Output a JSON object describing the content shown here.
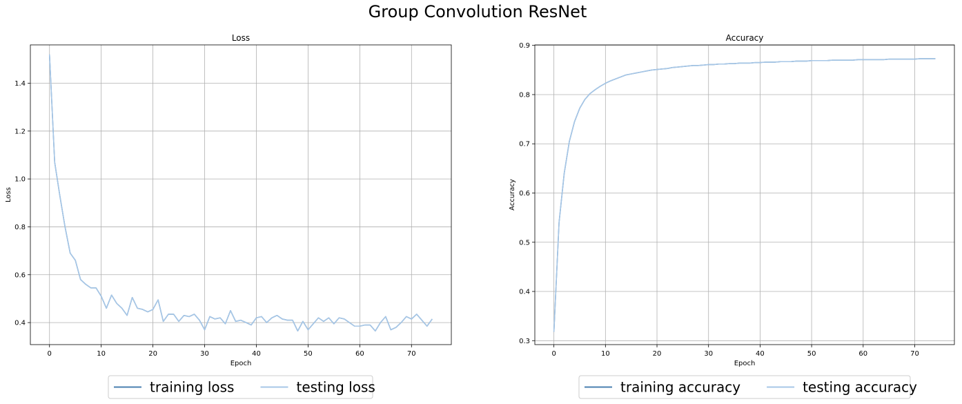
{
  "suptitle": "Group Convolution ResNet",
  "colors": {
    "training": "#4a7fb0",
    "testing": "#a7c7e7",
    "grid": "#b0b0b0"
  },
  "chart_data": [
    {
      "type": "line",
      "title": "Loss",
      "xlabel": "Epoch",
      "ylabel": "Loss",
      "xlim": [
        -3.7,
        77.7
      ],
      "ylim": [
        0.308,
        1.56
      ],
      "xticks": [
        0,
        10,
        20,
        30,
        40,
        50,
        60,
        70
      ],
      "yticks": [
        0.4,
        0.6,
        0.8,
        1.0,
        1.2,
        1.4
      ],
      "grid": true,
      "legend_position": "below plot",
      "series": [
        {
          "name": "training loss",
          "role": "training",
          "x": [
            0,
            1,
            2,
            3,
            4,
            5,
            6,
            7,
            8,
            9,
            10,
            11,
            12,
            13,
            14,
            15,
            16,
            17,
            18,
            19,
            20,
            21,
            22,
            23,
            24,
            25,
            26,
            27,
            28,
            29,
            30,
            31,
            32,
            33,
            34,
            35,
            36,
            37,
            38,
            39,
            40,
            41,
            42,
            43,
            44,
            45,
            46,
            47,
            48,
            49,
            50,
            51,
            52,
            53,
            54,
            55,
            56,
            57,
            58,
            59,
            60,
            61,
            62,
            63,
            64,
            65,
            66,
            67,
            68,
            69,
            70,
            71,
            72,
            73,
            74
          ],
          "y": [
            1.52,
            1.07,
            0.93,
            0.8,
            0.69,
            0.66,
            0.58,
            0.56,
            0.545,
            0.545,
            0.51,
            0.46,
            0.515,
            0.48,
            0.46,
            0.43,
            0.505,
            0.46,
            0.455,
            0.445,
            0.455,
            0.495,
            0.405,
            0.435,
            0.435,
            0.405,
            0.43,
            0.425,
            0.435,
            0.41,
            0.37,
            0.425,
            0.415,
            0.42,
            0.395,
            0.45,
            0.405,
            0.41,
            0.4,
            0.39,
            0.42,
            0.425,
            0.4,
            0.42,
            0.43,
            0.415,
            0.41,
            0.41,
            0.365,
            0.405,
            0.37,
            0.395,
            0.42,
            0.405,
            0.42,
            0.395,
            0.42,
            0.415,
            0.4,
            0.385,
            0.385,
            0.39,
            0.39,
            0.365,
            0.4,
            0.425,
            0.37,
            0.38,
            0.4,
            0.425,
            0.415,
            0.435,
            0.41,
            0.385,
            0.415
          ]
        },
        {
          "name": "testing loss",
          "role": "testing",
          "x": [
            0,
            1,
            2,
            3,
            4,
            5,
            6,
            7,
            8,
            9,
            10,
            11,
            12,
            13,
            14,
            15,
            16,
            17,
            18,
            19,
            20,
            21,
            22,
            23,
            24,
            25,
            26,
            27,
            28,
            29,
            30,
            31,
            32,
            33,
            34,
            35,
            36,
            37,
            38,
            39,
            40,
            41,
            42,
            43,
            44,
            45,
            46,
            47,
            48,
            49,
            50,
            51,
            52,
            53,
            54,
            55,
            56,
            57,
            58,
            59,
            60,
            61,
            62,
            63,
            64,
            65,
            66,
            67,
            68,
            69,
            70,
            71,
            72,
            73,
            74
          ],
          "y": [
            1.52,
            1.07,
            0.93,
            0.8,
            0.69,
            0.66,
            0.58,
            0.56,
            0.545,
            0.545,
            0.51,
            0.46,
            0.515,
            0.48,
            0.46,
            0.43,
            0.505,
            0.46,
            0.455,
            0.445,
            0.455,
            0.495,
            0.405,
            0.435,
            0.435,
            0.405,
            0.43,
            0.425,
            0.435,
            0.41,
            0.37,
            0.425,
            0.415,
            0.42,
            0.395,
            0.45,
            0.405,
            0.41,
            0.4,
            0.39,
            0.42,
            0.425,
            0.4,
            0.42,
            0.43,
            0.415,
            0.41,
            0.41,
            0.365,
            0.405,
            0.37,
            0.395,
            0.42,
            0.405,
            0.42,
            0.395,
            0.42,
            0.415,
            0.4,
            0.385,
            0.385,
            0.39,
            0.39,
            0.365,
            0.4,
            0.425,
            0.37,
            0.38,
            0.4,
            0.425,
            0.415,
            0.435,
            0.41,
            0.385,
            0.415
          ]
        }
      ]
    },
    {
      "type": "line",
      "title": "Accuracy",
      "xlabel": "Epoch",
      "ylabel": "Accuracy",
      "xlim": [
        -3.7,
        77.7
      ],
      "ylim": [
        0.292,
        0.901
      ],
      "xticks": [
        0,
        10,
        20,
        30,
        40,
        50,
        60,
        70
      ],
      "yticks": [
        0.3,
        0.4,
        0.5,
        0.6,
        0.7,
        0.8,
        0.9
      ],
      "grid": true,
      "legend_position": "below plot",
      "series": [
        {
          "name": "training accuracy",
          "role": "training",
          "x": [
            0,
            1,
            2,
            3,
            4,
            5,
            6,
            7,
            8,
            9,
            10,
            11,
            12,
            13,
            14,
            15,
            16,
            17,
            18,
            19,
            20,
            21,
            22,
            23,
            24,
            25,
            26,
            27,
            28,
            29,
            30,
            31,
            32,
            33,
            34,
            35,
            36,
            37,
            38,
            39,
            40,
            41,
            42,
            43,
            44,
            45,
            46,
            47,
            48,
            49,
            50,
            51,
            52,
            53,
            54,
            55,
            56,
            57,
            58,
            59,
            60,
            61,
            62,
            63,
            64,
            65,
            66,
            67,
            68,
            69,
            70,
            71,
            72,
            73,
            74
          ],
          "y": [
            0.318,
            0.54,
            0.64,
            0.705,
            0.745,
            0.772,
            0.79,
            0.802,
            0.81,
            0.817,
            0.823,
            0.828,
            0.832,
            0.836,
            0.84,
            0.842,
            0.844,
            0.846,
            0.848,
            0.85,
            0.851,
            0.852,
            0.853,
            0.855,
            0.856,
            0.857,
            0.858,
            0.859,
            0.859,
            0.86,
            0.861,
            0.861,
            0.862,
            0.862,
            0.863,
            0.863,
            0.864,
            0.864,
            0.864,
            0.865,
            0.865,
            0.866,
            0.866,
            0.866,
            0.867,
            0.867,
            0.867,
            0.868,
            0.868,
            0.868,
            0.869,
            0.869,
            0.869,
            0.869,
            0.87,
            0.87,
            0.87,
            0.87,
            0.87,
            0.871,
            0.871,
            0.871,
            0.871,
            0.871,
            0.871,
            0.872,
            0.872,
            0.872,
            0.872,
            0.872,
            0.872,
            0.873,
            0.873,
            0.873,
            0.873
          ]
        },
        {
          "name": "testing accuracy",
          "role": "testing",
          "x": [
            0,
            1,
            2,
            3,
            4,
            5,
            6,
            7,
            8,
            9,
            10,
            11,
            12,
            13,
            14,
            15,
            16,
            17,
            18,
            19,
            20,
            21,
            22,
            23,
            24,
            25,
            26,
            27,
            28,
            29,
            30,
            31,
            32,
            33,
            34,
            35,
            36,
            37,
            38,
            39,
            40,
            41,
            42,
            43,
            44,
            45,
            46,
            47,
            48,
            49,
            50,
            51,
            52,
            53,
            54,
            55,
            56,
            57,
            58,
            59,
            60,
            61,
            62,
            63,
            64,
            65,
            66,
            67,
            68,
            69,
            70,
            71,
            72,
            73,
            74
          ],
          "y": [
            0.318,
            0.54,
            0.64,
            0.705,
            0.745,
            0.772,
            0.79,
            0.802,
            0.81,
            0.817,
            0.823,
            0.828,
            0.832,
            0.836,
            0.84,
            0.842,
            0.844,
            0.846,
            0.848,
            0.85,
            0.851,
            0.852,
            0.853,
            0.855,
            0.856,
            0.857,
            0.858,
            0.859,
            0.859,
            0.86,
            0.861,
            0.861,
            0.862,
            0.862,
            0.863,
            0.863,
            0.864,
            0.864,
            0.864,
            0.865,
            0.865,
            0.866,
            0.866,
            0.866,
            0.867,
            0.867,
            0.867,
            0.868,
            0.868,
            0.868,
            0.869,
            0.869,
            0.869,
            0.869,
            0.87,
            0.87,
            0.87,
            0.87,
            0.87,
            0.871,
            0.871,
            0.871,
            0.871,
            0.871,
            0.871,
            0.872,
            0.872,
            0.872,
            0.872,
            0.872,
            0.872,
            0.873,
            0.873,
            0.873,
            0.873
          ]
        }
      ]
    }
  ]
}
